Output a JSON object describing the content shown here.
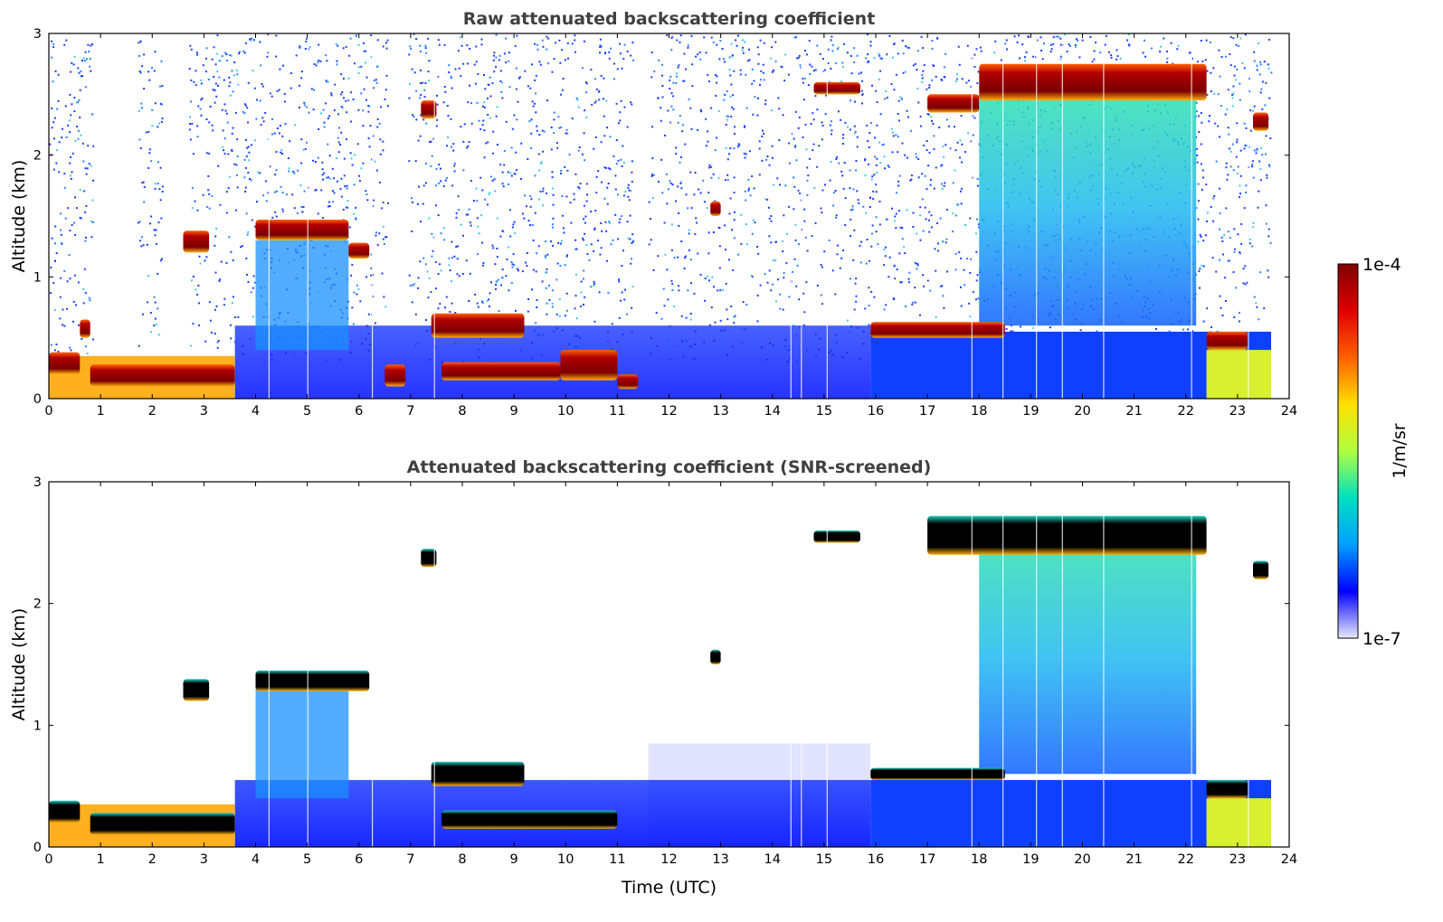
{
  "chart_data": [
    {
      "type": "heatmap",
      "id": "raw",
      "title": "Raw attenuated backscattering coefficient",
      "xlabel": "",
      "ylabel": "Altitude (km)",
      "xlim": [
        0,
        24
      ],
      "ylim": [
        0,
        3
      ],
      "xticks": [
        0,
        1,
        2,
        3,
        4,
        5,
        6,
        7,
        8,
        9,
        10,
        11,
        12,
        13,
        14,
        15,
        16,
        17,
        18,
        19,
        20,
        21,
        22,
        23,
        24
      ],
      "yticks": [
        0,
        1,
        2,
        3
      ],
      "screened": false,
      "cloud_layers": [
        {
          "t_start": 0.0,
          "t_end": 0.6,
          "base_km": 0.2,
          "top_km": 0.38
        },
        {
          "t_start": 0.6,
          "t_end": 0.8,
          "base_km": 0.5,
          "top_km": 0.65
        },
        {
          "t_start": 0.8,
          "t_end": 3.6,
          "base_km": 0.1,
          "top_km": 0.28
        },
        {
          "t_start": 2.6,
          "t_end": 3.1,
          "base_km": 1.2,
          "top_km": 1.38
        },
        {
          "t_start": 4.0,
          "t_end": 5.8,
          "base_km": 1.3,
          "top_km": 1.47
        },
        {
          "t_start": 5.8,
          "t_end": 6.2,
          "base_km": 1.15,
          "top_km": 1.28
        },
        {
          "t_start": 6.5,
          "t_end": 6.9,
          "base_km": 0.1,
          "top_km": 0.28
        },
        {
          "t_start": 7.2,
          "t_end": 7.5,
          "base_km": 2.3,
          "top_km": 2.45
        },
        {
          "t_start": 7.4,
          "t_end": 9.2,
          "base_km": 0.5,
          "top_km": 0.7
        },
        {
          "t_start": 7.6,
          "t_end": 9.9,
          "base_km": 0.15,
          "top_km": 0.3
        },
        {
          "t_start": 9.9,
          "t_end": 11.0,
          "base_km": 0.15,
          "top_km": 0.4
        },
        {
          "t_start": 11.0,
          "t_end": 11.4,
          "base_km": 0.08,
          "top_km": 0.2
        },
        {
          "t_start": 12.8,
          "t_end": 13.0,
          "base_km": 1.5,
          "top_km": 1.62
        },
        {
          "t_start": 14.8,
          "t_end": 15.7,
          "base_km": 2.5,
          "top_km": 2.6
        },
        {
          "t_start": 15.9,
          "t_end": 18.5,
          "base_km": 0.5,
          "top_km": 0.63
        },
        {
          "t_start": 17.0,
          "t_end": 18.0,
          "base_km": 2.35,
          "top_km": 2.5
        },
        {
          "t_start": 18.0,
          "t_end": 22.4,
          "base_km": 2.45,
          "top_km": 2.75
        },
        {
          "t_start": 22.4,
          "t_end": 23.2,
          "base_km": 0.4,
          "top_km": 0.55
        },
        {
          "t_start": 23.3,
          "t_end": 23.6,
          "base_km": 2.2,
          "top_km": 2.35
        }
      ]
    },
    {
      "type": "heatmap",
      "id": "snr",
      "title": "Attenuated backscattering coefficient (SNR-screened)",
      "xlabel": "Time (UTC)",
      "ylabel": "Altitude (km)",
      "xlim": [
        0,
        24
      ],
      "ylim": [
        0,
        3
      ],
      "xticks": [
        0,
        1,
        2,
        3,
        4,
        5,
        6,
        7,
        8,
        9,
        10,
        11,
        12,
        13,
        14,
        15,
        16,
        17,
        18,
        19,
        20,
        21,
        22,
        23,
        24
      ],
      "yticks": [
        0,
        1,
        2,
        3
      ],
      "screened": true,
      "cloud_layers": [
        {
          "t_start": 0.0,
          "t_end": 0.6,
          "base_km": 0.2,
          "top_km": 0.38
        },
        {
          "t_start": 0.8,
          "t_end": 3.6,
          "base_km": 0.1,
          "top_km": 0.28
        },
        {
          "t_start": 2.6,
          "t_end": 3.1,
          "base_km": 1.2,
          "top_km": 1.38
        },
        {
          "t_start": 4.0,
          "t_end": 6.2,
          "base_km": 1.28,
          "top_km": 1.45
        },
        {
          "t_start": 7.2,
          "t_end": 7.5,
          "base_km": 2.3,
          "top_km": 2.45
        },
        {
          "t_start": 7.4,
          "t_end": 9.2,
          "base_km": 0.5,
          "top_km": 0.7
        },
        {
          "t_start": 7.6,
          "t_end": 11.0,
          "base_km": 0.15,
          "top_km": 0.3
        },
        {
          "t_start": 12.8,
          "t_end": 13.0,
          "base_km": 1.5,
          "top_km": 1.62
        },
        {
          "t_start": 14.8,
          "t_end": 15.7,
          "base_km": 2.5,
          "top_km": 2.6
        },
        {
          "t_start": 15.9,
          "t_end": 18.5,
          "base_km": 0.55,
          "top_km": 0.65
        },
        {
          "t_start": 17.0,
          "t_end": 22.4,
          "base_km": 2.4,
          "top_km": 2.72
        },
        {
          "t_start": 22.4,
          "t_end": 23.2,
          "base_km": 0.4,
          "top_km": 0.55
        },
        {
          "t_start": 23.3,
          "t_end": 23.6,
          "base_km": 2.2,
          "top_km": 2.35
        }
      ]
    }
  ],
  "colorbar": {
    "label": "1/m/sr",
    "max_label": "1e-4",
    "min_label": "1e-7",
    "colormap": [
      "#e8e8f8",
      "#0000ff",
      "#00a0ff",
      "#00e0c0",
      "#b0ff40",
      "#ffe000",
      "#ff6000",
      "#e00000",
      "#800000"
    ]
  },
  "colors": {
    "cloud_core_raw": "#8b0000",
    "cloud_core_screened": "#000000",
    "noise": "#1a3cff"
  }
}
